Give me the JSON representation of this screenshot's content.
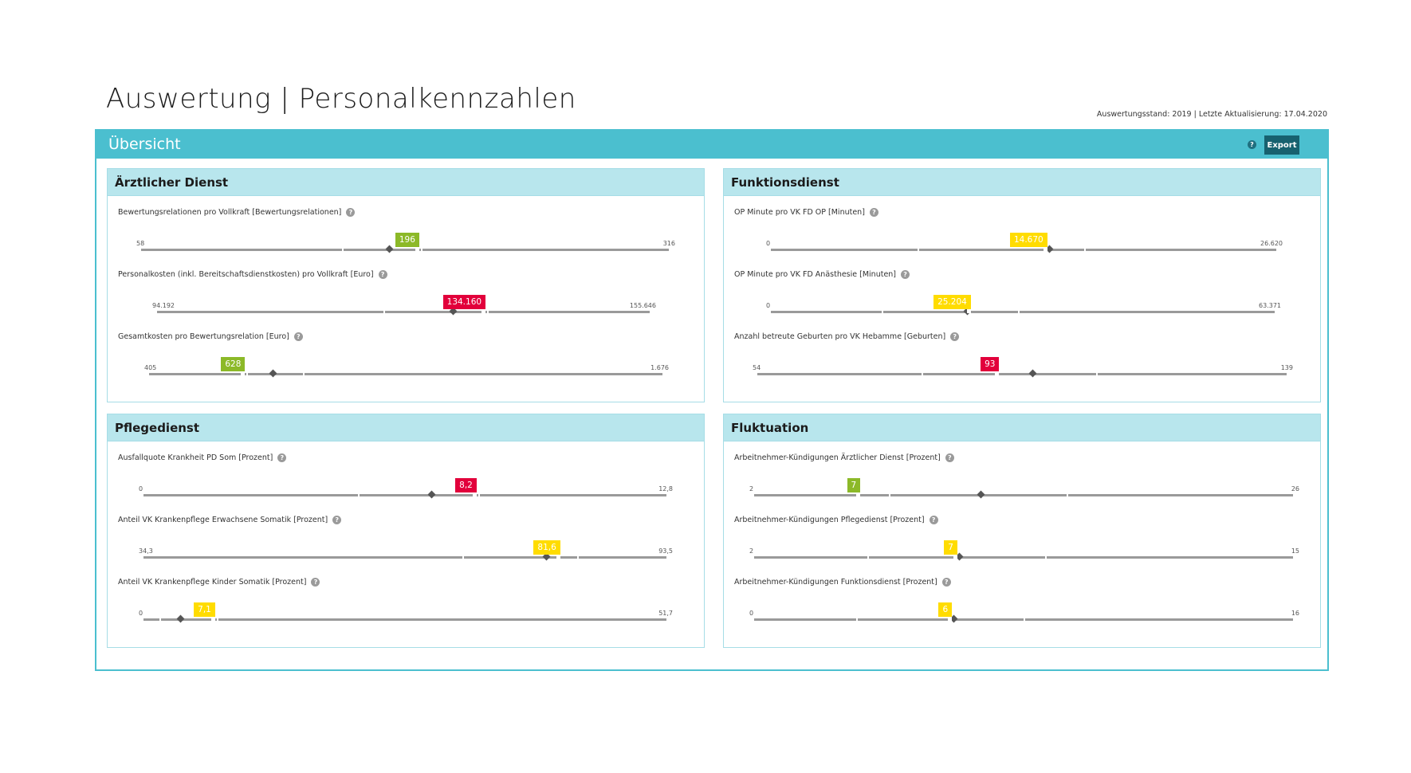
{
  "page": {
    "title": "Auswertung | Personalkennzahlen",
    "status": "Auswertungsstand: 2019 | Letzte Aktualisierung: 17.04.2020"
  },
  "panel": {
    "title": "Übersicht",
    "help": "?",
    "export_label": "Export"
  },
  "colors": {
    "accent": "#4bbfcf",
    "card_header": "#b8e6ed",
    "green": "#8cb928",
    "red": "#e2003b",
    "yellow": "#ffdc00"
  },
  "cards": [
    {
      "title": "Ärztlicher Dienst",
      "metrics": [
        {
          "label": "Bewertungsrelationen pro Vollkraft  [Bewertungsrelationen]",
          "min": "58",
          "max": "316",
          "value": "196",
          "status": "green",
          "value_pos": 0.53,
          "marker_pos": 0.47,
          "ticks": [
            0.38,
            0.53
          ]
        },
        {
          "label": "Personalkosten (inkl. Bereitschaftsdienstkosten) pro Vollkraft  [Euro]",
          "min": "94.192",
          "max": "155.646",
          "value": "134.160",
          "status": "red",
          "value_pos": 0.67,
          "marker_pos": 0.6,
          "ticks": [
            0.46,
            0.67
          ]
        },
        {
          "label": "Gesamtkosten pro Bewertungsrelation  [Euro]",
          "min": "405",
          "max": "1.676",
          "value": "628",
          "status": "green",
          "value_pos": 0.19,
          "marker_pos": 0.24,
          "ticks": [
            0.19,
            0.3
          ]
        }
      ]
    },
    {
      "title": "Funktionsdienst",
      "metrics": [
        {
          "label": "OP Minute pro VK FD OP  [Minuten]",
          "min": "0",
          "max": "26.620",
          "value": "14.670",
          "status": "yellow",
          "value_pos": 0.55,
          "marker_pos": 0.55,
          "ticks": [
            0.29,
            0.62
          ]
        },
        {
          "label": "OP Minute pro VK FD Anästhesie  [Minuten]",
          "min": "0",
          "max": "63.371",
          "value": "25.204",
          "status": "yellow",
          "value_pos": 0.4,
          "marker_pos": 0.39,
          "ticks": [
            0.22,
            0.49
          ]
        },
        {
          "label": "Anzahl betreute Geburten pro VK Hebamme  [Geburten]",
          "min": "54",
          "max": "139",
          "value": "93",
          "status": "red",
          "value_pos": 0.46,
          "marker_pos": 0.52,
          "ticks": [
            0.31,
            0.64
          ]
        }
      ]
    },
    {
      "title": "Pflegedienst",
      "metrics": [
        {
          "label": "Ausfallquote Krankheit PD Som  [Prozent]",
          "min": "0",
          "max": "12,8",
          "value": "8,2",
          "status": "red",
          "value_pos": 0.64,
          "marker_pos": 0.55,
          "ticks": [
            0.41,
            0.64
          ]
        },
        {
          "label": "Anteil VK Krankenpflege Erwachsene Somatik  [Prozent]",
          "min": "34,3",
          "max": "93,5",
          "value": "81,6",
          "status": "yellow",
          "value_pos": 0.8,
          "marker_pos": 0.77,
          "ticks": [
            0.61,
            0.83
          ]
        },
        {
          "label": "Anteil VK Krankenpflege Kinder Somatik  [Prozent]",
          "min": "0",
          "max": "51,7",
          "value": "7,1",
          "status": "yellow",
          "value_pos": 0.14,
          "marker_pos": 0.07,
          "ticks": [
            0.03,
            0.14
          ]
        }
      ]
    },
    {
      "title": "Fluktuation",
      "metrics": [
        {
          "label": "Arbeitnehmer-Kündigungen Ärztlicher Dienst  [Prozent]",
          "min": "2",
          "max": "26",
          "value": "7",
          "status": "green",
          "value_pos": 0.2,
          "marker_pos": 0.42,
          "ticks": [
            0.25,
            0.58
          ]
        },
        {
          "label": "Arbeitnehmer-Kündigungen Pflegedienst  [Prozent]",
          "min": "2",
          "max": "15",
          "value": "7",
          "status": "yellow",
          "value_pos": 0.38,
          "marker_pos": 0.38,
          "ticks": [
            0.21,
            0.54
          ]
        },
        {
          "label": "Arbeitnehmer-Kündigungen Funktionsdienst  [Prozent]",
          "min": "0",
          "max": "16",
          "value": "6",
          "status": "yellow",
          "value_pos": 0.37,
          "marker_pos": 0.37,
          "ticks": [
            0.19,
            0.5
          ]
        }
      ]
    }
  ]
}
